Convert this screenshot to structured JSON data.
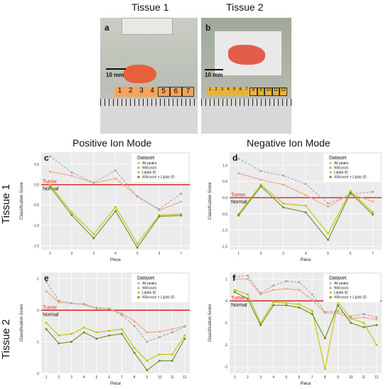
{
  "columns": {
    "tissue1": "Tissue 1",
    "tissue2": "Tissue 2",
    "positive": "Positive Ion Mode",
    "negative": "Negative Ion Mode"
  },
  "rows": {
    "tissue1": "Tissue 1",
    "tissue2": "Tissue 2"
  },
  "photos": {
    "a": {
      "label": "a",
      "scale": "10 mm",
      "pieces": [
        "1",
        "2",
        "3",
        "4",
        "5",
        "6",
        "7"
      ]
    },
    "b": {
      "label": "b",
      "scale": "10 mm",
      "pieces": [
        "1",
        "2",
        "3",
        "4",
        "5",
        "6",
        "7",
        "8",
        "9",
        "10",
        "11",
        "12"
      ]
    }
  },
  "colors": {
    "all_peaks": "#f3a582",
    "wilcoxon": "#a6a6a6",
    "lipids_id": "#c8c200",
    "wilcoxon_lipids": "#6b8e23",
    "tumor_line": "#dd2222"
  },
  "chart_data": [
    {
      "label": "c",
      "type": "line",
      "xlabel": "Piece",
      "ylabel": "Classification Score",
      "x": [
        1,
        2,
        3,
        4,
        5,
        6,
        7
      ],
      "ylim": [
        -1.6,
        0.8
      ],
      "yticks": [
        -1.5,
        -1.0,
        -0.5,
        0.0,
        0.5
      ],
      "threshold": 0,
      "tumor_label": "Tumor",
      "normal_label": "Normal",
      "legend_title": "Dataset",
      "series": [
        {
          "name": "All peaks",
          "values": [
            0.32,
            0.22,
            0.04,
            0.15,
            -0.28,
            -0.63,
            -0.42
          ]
        },
        {
          "name": "Wilcoxon",
          "values": [
            0.7,
            0.3,
            0.05,
            0.35,
            -0.3,
            -0.6,
            -0.22
          ]
        },
        {
          "name": "Lipids ID",
          "values": [
            0.0,
            -0.68,
            -1.22,
            -0.55,
            -1.45,
            -0.75,
            -0.72
          ]
        },
        {
          "name": "Wilcoxon + Lipids ID",
          "values": [
            -0.05,
            -0.75,
            -1.32,
            -0.65,
            -1.55,
            -0.78,
            -0.76
          ]
        }
      ]
    },
    {
      "label": "d",
      "type": "line",
      "xlabel": "Piece",
      "ylabel": "Classification Score",
      "x": [
        1,
        2,
        3,
        4,
        5,
        6,
        7
      ],
      "ylim": [
        -1.6,
        1.4
      ],
      "yticks": [
        -1.5,
        -1.0,
        -0.5,
        0.0,
        0.5,
        1.0
      ],
      "threshold": 0,
      "tumor_label": "Tumor",
      "normal_label": "Normal",
      "legend_title": "Dataset",
      "series": [
        {
          "name": "All peaks",
          "values": [
            0.75,
            0.55,
            0.4,
            0.08,
            -0.28,
            0.12,
            -0.12
          ]
        },
        {
          "name": "Wilcoxon",
          "values": [
            1.2,
            0.82,
            0.68,
            0.42,
            -0.18,
            0.1,
            0.18
          ]
        },
        {
          "name": "Lipids ID",
          "values": [
            -0.5,
            0.4,
            -0.18,
            -0.25,
            -1.1,
            0.2,
            -0.45
          ]
        },
        {
          "name": "Wilcoxon + Lipids ID",
          "values": [
            -0.55,
            0.35,
            -0.3,
            -0.45,
            -1.3,
            0.15,
            -0.52
          ]
        }
      ]
    },
    {
      "label": "e",
      "type": "line",
      "xlabel": "Piece",
      "ylabel": "Classification Score",
      "x": [
        1,
        2,
        3,
        4,
        5,
        6,
        7,
        8,
        9,
        10,
        11,
        12
      ],
      "ylim": [
        -2.0,
        1.2
      ],
      "yticks": [
        -2,
        -1,
        0,
        1
      ],
      "threshold": 0,
      "tumor_label": "Tumor",
      "normal_label": "Normal",
      "legend_title": "Dataset",
      "series": [
        {
          "name": "All peaks",
          "values": [
            0.6,
            0.25,
            0.22,
            0.18,
            0.05,
            0.05,
            -0.1,
            -0.35,
            -0.7,
            -0.68,
            -0.6,
            -0.5
          ]
        },
        {
          "name": "Wilcoxon",
          "values": [
            0.9,
            0.3,
            0.22,
            0.2,
            0.08,
            0.05,
            -0.15,
            -0.5,
            -1.0,
            -0.85,
            -0.7,
            -0.52
          ]
        },
        {
          "name": "Lipids ID",
          "values": [
            -0.4,
            -0.8,
            -0.75,
            -0.55,
            -0.7,
            -0.65,
            -0.6,
            -1.2,
            -1.6,
            -1.4,
            -1.4,
            -0.8
          ]
        },
        {
          "name": "Wilcoxon + Lipids ID",
          "values": [
            -0.6,
            -1.05,
            -1.0,
            -0.7,
            -0.9,
            -0.8,
            -0.75,
            -1.35,
            -1.9,
            -1.6,
            -1.6,
            -0.9
          ]
        }
      ]
    },
    {
      "label": "f",
      "type": "line",
      "xlabel": "Piece",
      "ylabel": "Classification Score",
      "x": [
        1,
        2,
        3,
        4,
        5,
        6,
        7,
        8,
        9,
        10,
        11,
        12
      ],
      "ylim": [
        -3.3,
        1.3
      ],
      "yticks": [
        -3,
        -2,
        -1,
        0,
        1
      ],
      "threshold": 0,
      "tumor_label": "Tumor",
      "normal_label": "Normal",
      "legend_title": "Dataset",
      "series": [
        {
          "name": "All peaks",
          "values": [
            1.0,
            1.0,
            0.3,
            0.5,
            0.55,
            0.5,
            0.05,
            -0.55,
            -0.55,
            -0.8,
            -0.75,
            -0.85
          ]
        },
        {
          "name": "Wilcoxon",
          "values": [
            1.1,
            1.15,
            0.35,
            0.7,
            0.9,
            0.85,
            0.3,
            -0.5,
            -0.45,
            -0.7,
            -0.6,
            -0.75
          ]
        },
        {
          "name": "Lipids ID",
          "values": [
            0.5,
            0.3,
            -1.0,
            -0.05,
            -0.1,
            -0.15,
            -0.45,
            -3.1,
            -0.05,
            -0.8,
            -1.0,
            -2.0
          ]
        },
        {
          "name": "Wilcoxon + Lipids ID",
          "values": [
            0.4,
            0.1,
            -1.1,
            -0.2,
            -0.2,
            -0.3,
            -0.6,
            -1.7,
            -0.2,
            -1.0,
            -1.2,
            -1.1
          ]
        }
      ]
    }
  ]
}
